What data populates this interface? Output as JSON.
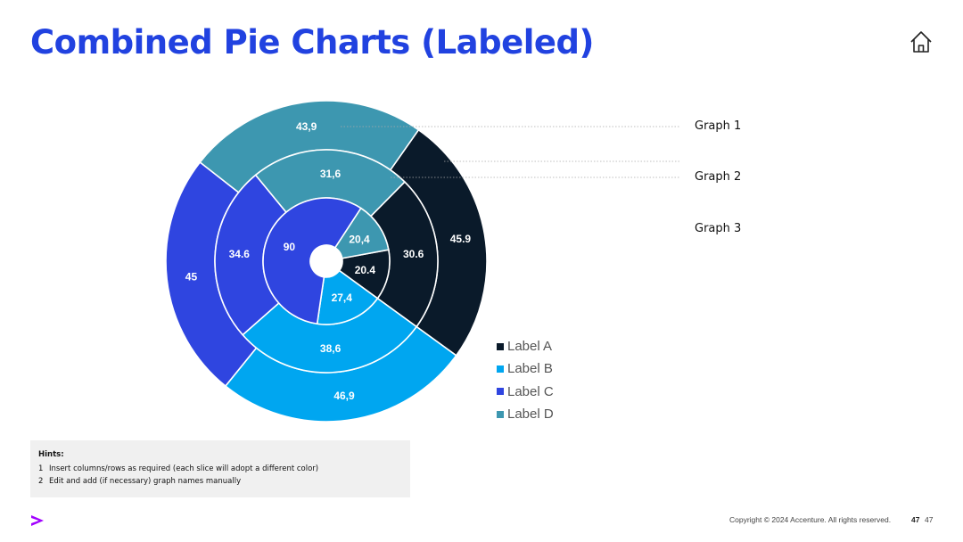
{
  "page": {
    "title": "Combined Pie Charts (Labeled)",
    "copyright": "Copyright © 2024 Accenture. All rights reserved.",
    "page_number_bold": "47",
    "page_number": "47",
    "accent_color": "#2142e0",
    "logo_color": "#a100ff",
    "home_icon": "home-icon",
    "logo_icon": "accenture-chevron-icon"
  },
  "hints": {
    "title": "Hints:",
    "items": [
      {
        "num": "1",
        "text": "Insert columns/rows as required (each slice will adopt a different color)"
      },
      {
        "num": "2",
        "text": "Edit and add (if necessary) graph names manually"
      }
    ]
  },
  "chart_data": {
    "type": "pie",
    "categories": [
      "Label A",
      "Label B",
      "Label C",
      "Label D"
    ],
    "colors": [
      "#0a1a2a",
      "#00a6f0",
      "#2f45e0",
      "#3d97b0"
    ],
    "series": [
      {
        "name": "Graph 1",
        "values": [
          45.9,
          46.9,
          45,
          43.9
        ],
        "labels": [
          "45.9",
          "46,9",
          "45",
          "43,9"
        ]
      },
      {
        "name": "Graph 2",
        "values": [
          30.6,
          38.6,
          34.6,
          31.6
        ],
        "labels": [
          "30.6",
          "38,6",
          "34.6",
          "31,6"
        ]
      },
      {
        "name": "Graph 3",
        "values": [
          20.4,
          27.4,
          90,
          20.4
        ],
        "labels": [
          "20.4",
          "27,4",
          "90",
          "20,4"
        ]
      }
    ],
    "legend_position": "bottom-right",
    "chart_style": "nested-donut"
  }
}
